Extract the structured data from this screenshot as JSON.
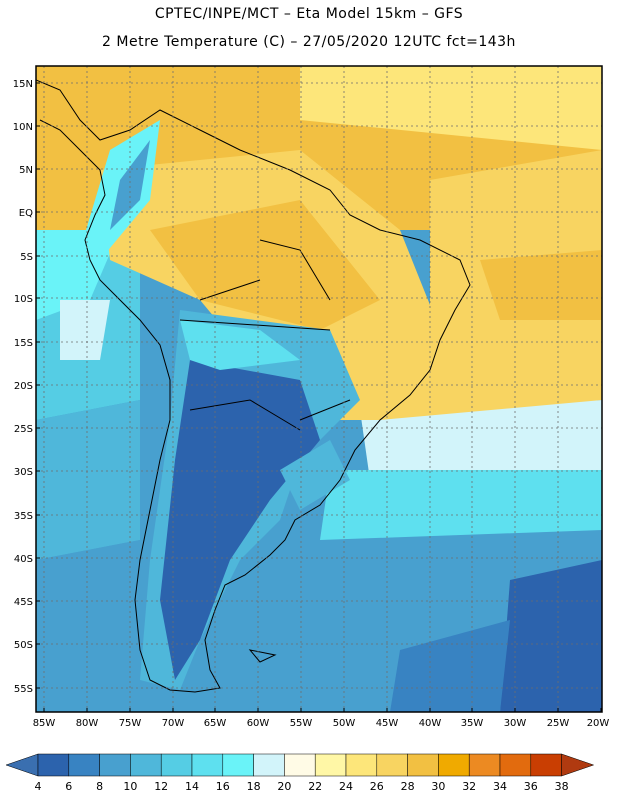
{
  "header": {
    "line1": "CPTEC/INPE/MCT –  Eta Model 15km – GFS",
    "line2": "2 Metre Temperature (C) – 27/05/2020 12UTC fct=143h"
  },
  "map": {
    "lat_labels": [
      "15N",
      "10N",
      "5N",
      "EQ",
      "5S",
      "10S",
      "15S",
      "20S",
      "25S",
      "30S",
      "35S",
      "40S",
      "45S",
      "50S",
      "55S"
    ],
    "lon_labels": [
      "85W",
      "80W",
      "75W",
      "70W",
      "65W",
      "60W",
      "55W",
      "50W",
      "45W",
      "40W",
      "35W",
      "30W",
      "25W",
      "20W"
    ]
  },
  "colorbar": {
    "labels": [
      "4",
      "6",
      "8",
      "10",
      "12",
      "14",
      "16",
      "18",
      "20",
      "22",
      "24",
      "26",
      "28",
      "30",
      "32",
      "34",
      "36",
      "38"
    ],
    "colors": [
      "#3a6fb0",
      "#2c63ad",
      "#3883c2",
      "#48a0cf",
      "#4fb7da",
      "#55cde4",
      "#5ee0ef",
      "#6af3f8",
      "#d2f4fa",
      "#fffbe6",
      "#fff7a6",
      "#fde67a",
      "#f8d461",
      "#f2c042",
      "#f0aa00",
      "#ec8a22",
      "#e26b0e",
      "#c93e02",
      "#b03a10"
    ]
  }
}
